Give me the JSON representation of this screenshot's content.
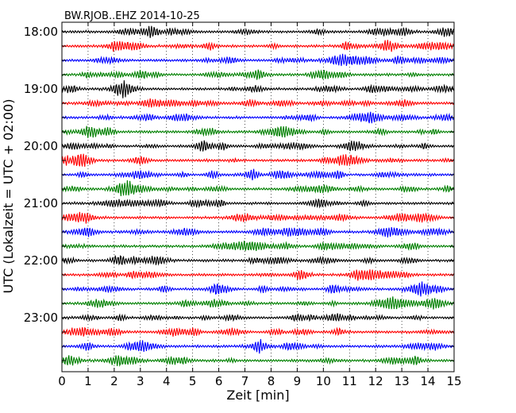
{
  "chart_data": {
    "type": "line",
    "title": "BW.RJOB..EHZ 2014-10-25",
    "xlabel": "Zeit  [min]",
    "ylabel": "UTC (Lokalzeit = UTC + 02:00)",
    "xlim": [
      0,
      15
    ],
    "x_ticks": [
      "0",
      "1",
      "2",
      "3",
      "4",
      "5",
      "6",
      "7",
      "8",
      "9",
      "10",
      "11",
      "12",
      "13",
      "14",
      "15"
    ],
    "y_ticks": [
      "18:00",
      "19:00",
      "20:00",
      "21:00",
      "22:00",
      "23:00"
    ],
    "grid": "vertical dotted",
    "trace_colors": [
      "#000000",
      "#ff0000",
      "#0000ff",
      "#008000"
    ],
    "series": [
      {
        "values": [
          "18:00"
        ]
      },
      {
        "values": [
          "18:15"
        ]
      },
      {
        "values": [
          "18:30"
        ]
      },
      {
        "values": [
          "18:45"
        ]
      },
      {
        "values": [
          "19:00"
        ]
      },
      {
        "values": [
          "19:15"
        ]
      },
      {
        "values": [
          "19:30"
        ]
      },
      {
        "values": [
          "19:45"
        ]
      },
      {
        "values": [
          "20:00"
        ]
      },
      {
        "values": [
          "20:15"
        ]
      },
      {
        "values": [
          "20:30"
        ]
      },
      {
        "values": [
          "20:45"
        ]
      },
      {
        "values": [
          "21:00"
        ]
      },
      {
        "values": [
          "21:15"
        ]
      },
      {
        "values": [
          "21:30"
        ]
      },
      {
        "values": [
          "21:45"
        ]
      },
      {
        "values": [
          "22:00"
        ]
      },
      {
        "values": [
          "22:15"
        ]
      },
      {
        "values": [
          "22:30"
        ]
      },
      {
        "values": [
          "22:45"
        ]
      },
      {
        "values": [
          "23:00"
        ]
      },
      {
        "values": [
          "23:15"
        ]
      },
      {
        "values": [
          "23:30"
        ]
      },
      {
        "values": [
          "23:45"
        ]
      }
    ]
  }
}
